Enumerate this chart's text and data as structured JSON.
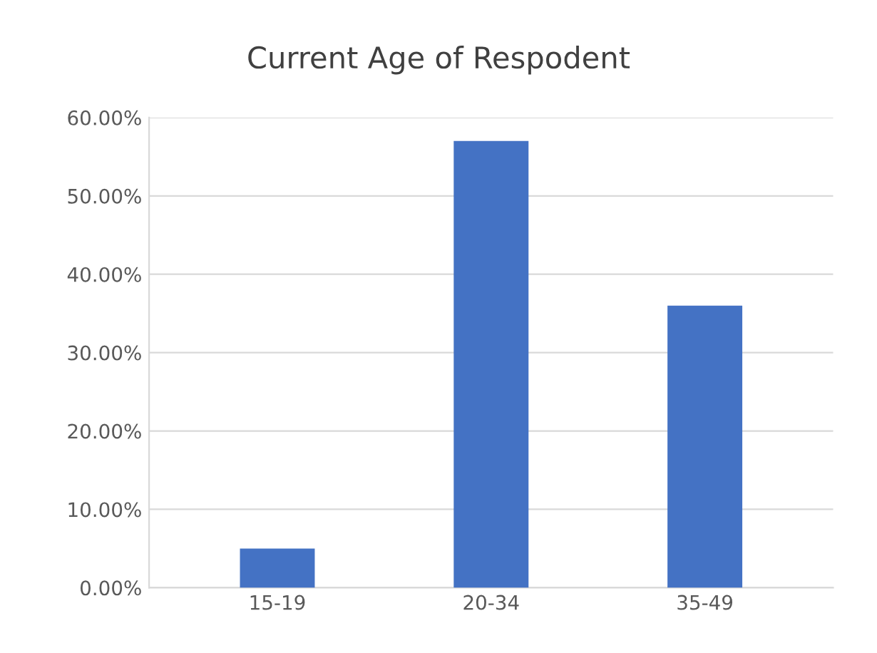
{
  "chart_data": {
    "type": "bar",
    "title": "Current Age of Respodent",
    "categories": [
      "15-19",
      "20-34",
      "35-49"
    ],
    "values": [
      5,
      57,
      36
    ],
    "color": "#4472c4",
    "ylim": [
      0,
      60
    ],
    "yticks": [
      {
        "value": 0,
        "label": "0.00%"
      },
      {
        "value": 10,
        "label": "10.00%"
      },
      {
        "value": 20,
        "label": "20.00%"
      },
      {
        "value": 30,
        "label": "30.00%"
      },
      {
        "value": 40,
        "label": "40.00%"
      },
      {
        "value": 50,
        "label": "50.00%"
      },
      {
        "value": 60,
        "label": "60.00%"
      }
    ],
    "grid": "y"
  }
}
